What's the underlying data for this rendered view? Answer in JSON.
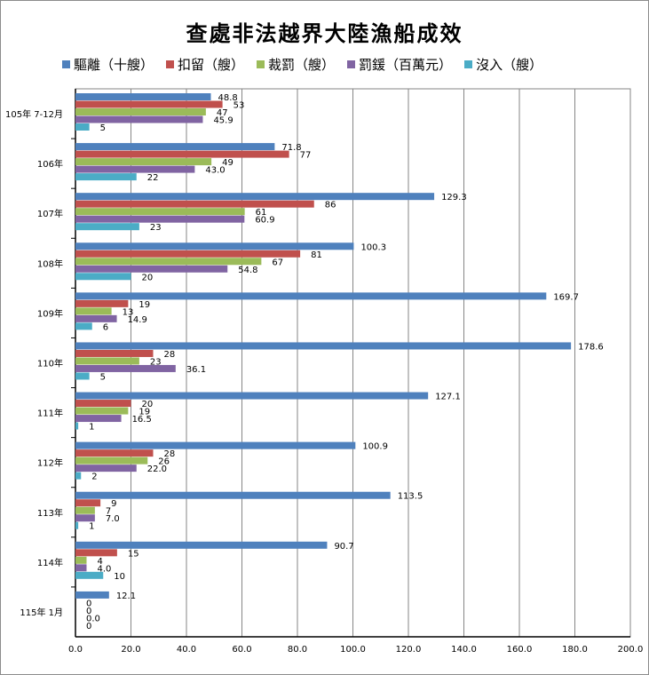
{
  "chart_data": {
    "type": "bar",
    "orientation": "horizontal",
    "title": "查處非法越界大陸漁船成效",
    "categories": [
      "105年 7-12月",
      "106年",
      "107年",
      "108年",
      "109年",
      "110年",
      "111年",
      "112年",
      "113年",
      "114年",
      "115年 1月"
    ],
    "series": [
      {
        "name": "驅離（十艘）",
        "color": "#4f81bd",
        "values": [
          48.8,
          71.8,
          129.3,
          100.3,
          169.7,
          178.6,
          127.1,
          100.9,
          113.5,
          90.7,
          12.1
        ],
        "labels": [
          "48.8",
          "71.8",
          "129.3",
          "100.3",
          "169.7",
          "178.6",
          "127.1",
          "100.9",
          "113.5",
          "90.7",
          "12.1"
        ]
      },
      {
        "name": "扣留（艘）",
        "color": "#c0504d",
        "values": [
          53,
          77,
          86,
          81,
          19,
          28,
          20,
          28,
          9,
          15,
          0
        ],
        "labels": [
          "53",
          "77",
          "86",
          "81",
          "19",
          "28",
          "20",
          "28",
          "9",
          "15",
          "0"
        ]
      },
      {
        "name": "裁罰（艘）",
        "color": "#9bbb59",
        "values": [
          47,
          49,
          61,
          67,
          13,
          23,
          19,
          26,
          7,
          4,
          0
        ],
        "labels": [
          "47",
          "49",
          "61",
          "67",
          "13",
          "23",
          "19",
          "26",
          "7",
          "4",
          "0"
        ]
      },
      {
        "name": "罰鍰（百萬元）",
        "color": "#8064a2",
        "values": [
          45.9,
          43.0,
          60.9,
          54.8,
          14.9,
          36.1,
          16.5,
          22.0,
          7.0,
          4.0,
          0.0
        ],
        "labels": [
          "45.9",
          "43.0",
          "60.9",
          "54.8",
          "14.9",
          "36.1",
          "16.5",
          "22.0",
          "7.0",
          "4.0",
          "0.0"
        ]
      },
      {
        "name": "沒入（艘）",
        "color": "#4bacc6",
        "values": [
          5,
          22,
          23,
          20,
          6,
          5,
          1,
          2,
          1,
          10,
          0
        ],
        "labels": [
          "5",
          "22",
          "23",
          "20",
          "6",
          "5",
          "1",
          "2",
          "1",
          "10",
          "0"
        ]
      }
    ],
    "xlim": [
      0,
      200
    ],
    "xticks": [
      "0.0",
      "20.0",
      "40.0",
      "60.0",
      "80.0",
      "100.0",
      "120.0",
      "140.0",
      "160.0",
      "180.0",
      "200.0"
    ],
    "grid": true,
    "legend": "top"
  }
}
